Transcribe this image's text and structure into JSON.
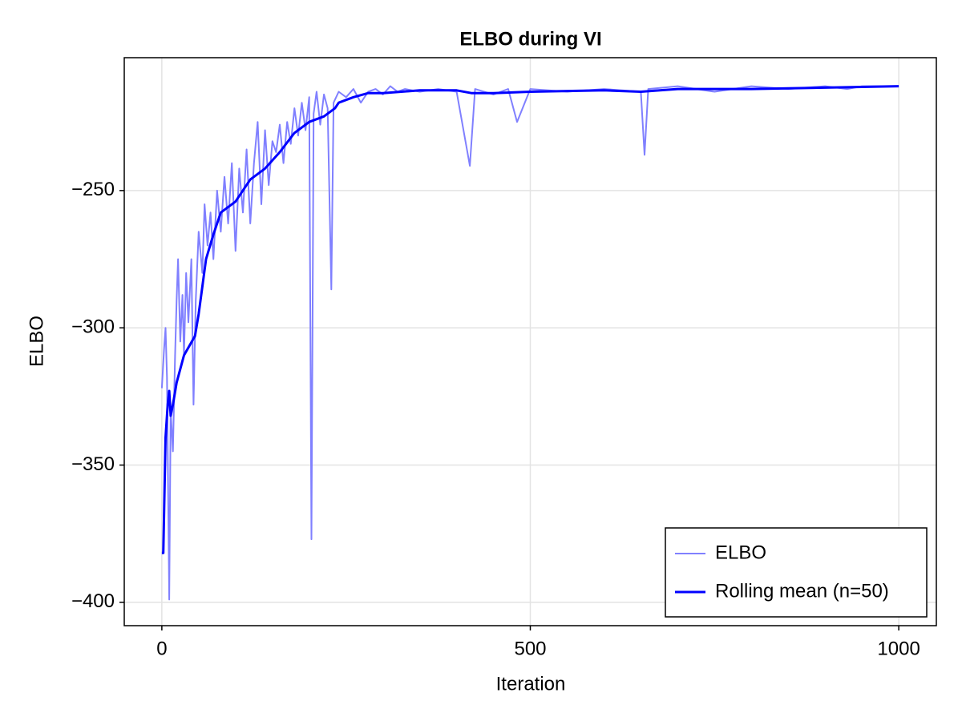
{
  "chart_data": {
    "type": "line",
    "title": "ELBO during VI",
    "x_label": "Iteration",
    "y_label": "ELBO",
    "xlim": [
      -51,
      1051
    ],
    "ylim": [
      -408.5,
      -201.6
    ],
    "xticks": [
      0,
      500,
      1000
    ],
    "yticks": [
      {
        "value": -400,
        "label": "−400"
      },
      {
        "value": -350,
        "label": "−350"
      },
      {
        "value": -300,
        "label": "−300"
      },
      {
        "value": -250,
        "label": "−250"
      }
    ],
    "grid": true,
    "legend": "bottom-right",
    "series": [
      {
        "name": "ELBO",
        "color": "#8080ff",
        "width": 2,
        "x": [
          0,
          3,
          5,
          7,
          10,
          12,
          15,
          18,
          20,
          22,
          25,
          28,
          30,
          33,
          36,
          40,
          43,
          46,
          50,
          55,
          58,
          62,
          66,
          70,
          75,
          80,
          85,
          90,
          95,
          100,
          105,
          110,
          115,
          120,
          125,
          130,
          135,
          140,
          145,
          150,
          155,
          160,
          165,
          170,
          175,
          180,
          185,
          190,
          195,
          200,
          203,
          206,
          210,
          215,
          220,
          225,
          230,
          233,
          240,
          250,
          260,
          270,
          280,
          290,
          300,
          310,
          320,
          330,
          350,
          375,
          400,
          418,
          425,
          450,
          470,
          482,
          500,
          550,
          600,
          650,
          655,
          660,
          700,
          750,
          800,
          850,
          900,
          930,
          950,
          1000
        ],
        "values": [
          -322,
          -308,
          -300,
          -318,
          -399,
          -330,
          -345,
          -310,
          -290,
          -275,
          -305,
          -288,
          -310,
          -280,
          -298,
          -275,
          -328,
          -290,
          -265,
          -280,
          -255,
          -270,
          -258,
          -275,
          -250,
          -265,
          -245,
          -262,
          -240,
          -272,
          -242,
          -258,
          -235,
          -262,
          -240,
          -225,
          -255,
          -228,
          -248,
          -232,
          -236,
          -226,
          -240,
          -225,
          -233,
          -220,
          -230,
          -218,
          -228,
          -216,
          -377,
          -222,
          -214,
          -226,
          -215,
          -220,
          -286,
          -218,
          -214,
          -216,
          -213,
          -218,
          -214,
          -213,
          -215,
          -212,
          -214,
          -213,
          -214,
          -213,
          -214,
          -241,
          -213,
          -215,
          -213,
          -225,
          -213,
          -214,
          -213,
          -214,
          -237,
          -213,
          -212,
          -214,
          -212,
          -213,
          -212,
          -213,
          -212,
          -212
        ]
      },
      {
        "name": "Rolling mean (n=50)",
        "color": "#0000ff",
        "width": 3,
        "x": [
          0,
          2,
          5,
          8,
          10,
          12,
          15,
          20,
          30,
          45,
          50,
          60,
          70,
          80,
          100,
          120,
          140,
          160,
          180,
          200,
          220,
          235,
          240,
          260,
          280,
          300,
          350,
          400,
          420,
          450,
          500,
          600,
          650,
          700,
          800,
          900,
          1000
        ],
        "values": [
          -382,
          -382,
          -340,
          -328,
          -323,
          -332,
          -328,
          -320,
          -310,
          -303,
          -295,
          -275,
          -266,
          -258,
          -254,
          -246,
          -242,
          -236,
          -229,
          -225,
          -223,
          -220,
          -218,
          -216,
          -214.5,
          -214.5,
          -213.5,
          -213.5,
          -214.5,
          -214.5,
          -214,
          -213.5,
          -214,
          -213,
          -213,
          -212.5,
          -212
        ]
      }
    ]
  }
}
